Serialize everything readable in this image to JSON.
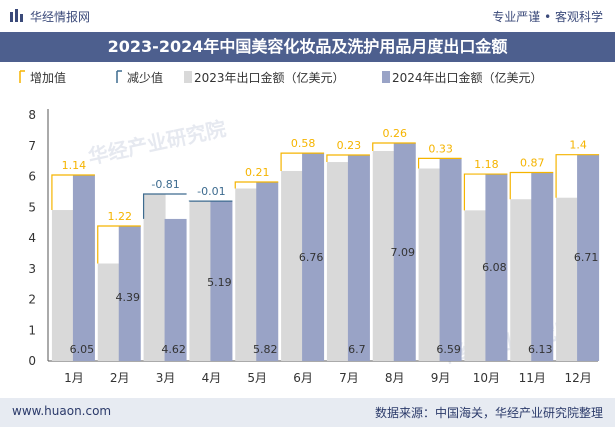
{
  "header": {
    "brand": "华经情报网",
    "tagline": "专业严谨 • 客观科学"
  },
  "title": "2023-2024年中国美容化妆品及洗护用品月度出口金额",
  "footer": {
    "site": "www.huaon.com",
    "source": "数据来源：中国海关，华经产业研究院整理"
  },
  "watermark": "华经产业研究院",
  "colors": {
    "title_bg": "#4d5f8e",
    "bar_2023": "#d9d9d9",
    "bar_2024": "#99a3c6",
    "increase": "#f5b400",
    "decrease": "#3d6b8f"
  },
  "chart_data": {
    "type": "bar",
    "categories": [
      "1月",
      "2月",
      "3月",
      "4月",
      "5月",
      "6月",
      "7月",
      "8月",
      "9月",
      "10月",
      "11月",
      "12月"
    ],
    "series": [
      {
        "name": "2023年出口金额（亿美元）",
        "values": [
          4.91,
          3.17,
          5.43,
          5.2,
          5.61,
          6.18,
          6.47,
          6.83,
          6.26,
          4.9,
          5.26,
          5.31
        ]
      },
      {
        "name": "2024年出口金额（亿美元）",
        "values": [
          6.05,
          4.39,
          4.62,
          5.19,
          5.82,
          6.76,
          6.7,
          7.09,
          6.59,
          6.08,
          6.13,
          6.71
        ]
      }
    ],
    "diff_series": [
      {
        "name": "增加值",
        "sign": "increase"
      },
      {
        "name": "减少值",
        "sign": "decrease"
      }
    ],
    "diff_labels": [
      "1.14",
      "1.22",
      "-0.81",
      "-0.01",
      "0.21",
      "0.58",
      "0.23",
      "0.26",
      "0.33",
      "1.18",
      "0.87",
      "1.4"
    ],
    "value_labels": [
      "6.05",
      "4.39",
      "4.62",
      "5.19",
      "5.82",
      "6.76",
      "6.7",
      "7.09",
      "6.59",
      "6.08",
      "6.13",
      "6.71"
    ],
    "ylim": [
      0,
      8
    ],
    "yticks": [
      0,
      1,
      2,
      3,
      4,
      5,
      6,
      7,
      8
    ],
    "grid": false,
    "legend_position": "top-left"
  }
}
